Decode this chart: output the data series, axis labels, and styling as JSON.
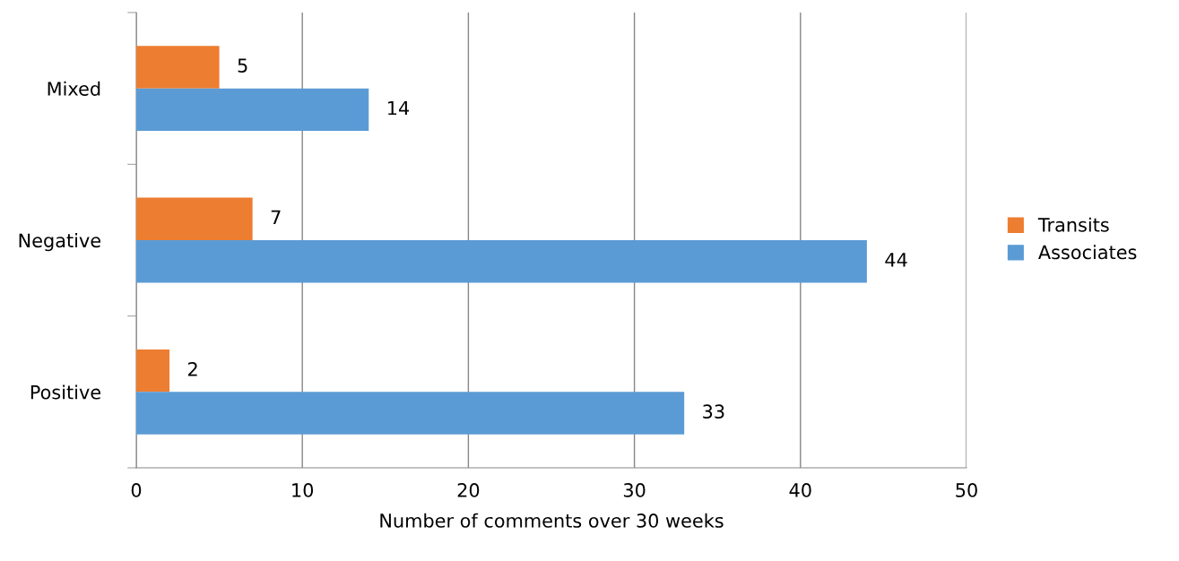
{
  "chart_data": {
    "type": "bar",
    "orientation": "horizontal",
    "categories": [
      "Mixed",
      "Negative",
      "Positive"
    ],
    "series": [
      {
        "name": "Transits",
        "color": "#ed7d31",
        "values": [
          5,
          7,
          2
        ]
      },
      {
        "name": "Associates",
        "color": "#5b9bd5",
        "values": [
          14,
          44,
          33
        ]
      }
    ],
    "xlabel": "Number of comments over 30 weeks",
    "xlim": [
      0,
      50
    ],
    "xticks": [
      0,
      10,
      20,
      30,
      40,
      50
    ],
    "grid": "x",
    "legend": "right",
    "data_labels": true
  }
}
